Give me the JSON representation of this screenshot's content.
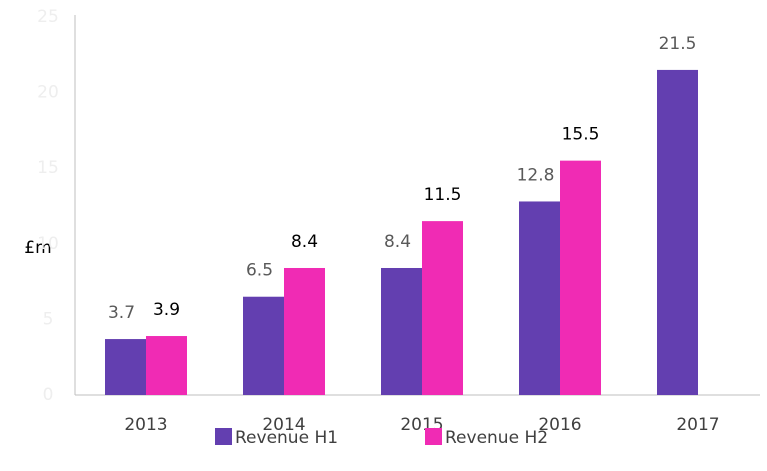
{
  "chart_data": {
    "type": "bar",
    "y_label": "£m",
    "categories": [
      "2013",
      "2014",
      "2015",
      "2016",
      "2017"
    ],
    "series": [
      {
        "name": "Revenue H1",
        "color": "#633fb0",
        "values": [
          3.7,
          6.5,
          8.4,
          12.8,
          21.5
        ]
      },
      {
        "name": "Revenue H2",
        "color": "#f02bb4",
        "values": [
          3.9,
          8.4,
          11.5,
          15.5,
          null
        ]
      }
    ],
    "ylim": [
      0,
      25
    ],
    "yticks": [
      0,
      5,
      10,
      15,
      20,
      25
    ],
    "grid": false,
    "legend": "bottom"
  }
}
